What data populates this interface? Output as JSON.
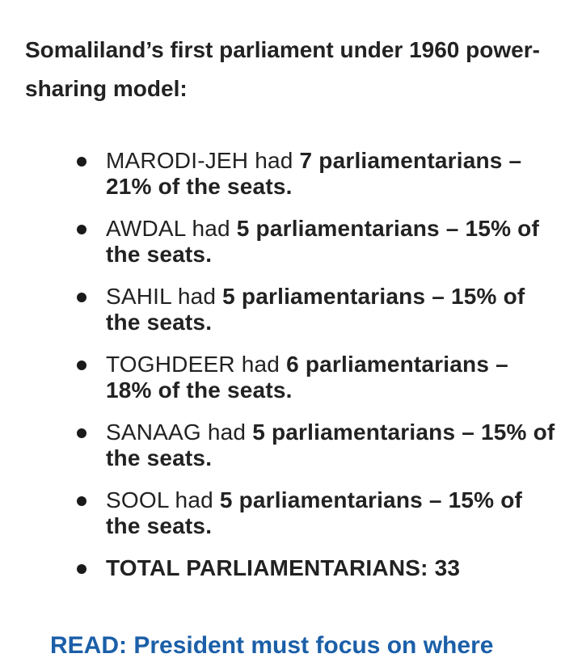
{
  "article": {
    "heading": "Somaliland’s first parliament under 1960 power-sharing model:",
    "items": [
      {
        "region": "MARODI-JEH",
        "connector": " had ",
        "detail": "7 parliamentarians – 21% of the seats."
      },
      {
        "region": "AWDAL",
        "connector": " had ",
        "detail": "5 parliamentarians – 15% of the seats."
      },
      {
        "region": "SAHIL",
        "connector": " had ",
        "detail": "5 parliamentarians – 15% of the seats."
      },
      {
        "region": "TOGHDEER",
        "connector": " had ",
        "detail": "6 parliamentarians – 18% of the seats."
      },
      {
        "region": "SANAAG",
        "connector": " had ",
        "detail": "5 parliamentarians – 15% of the seats."
      },
      {
        "region": "SOOL",
        "connector": " had ",
        "detail": "5 parliamentarians – 15% of the seats."
      }
    ],
    "total": "TOTAL PARLIAMENTARIANS: 33",
    "read_more": "READ: President must focus on where"
  }
}
